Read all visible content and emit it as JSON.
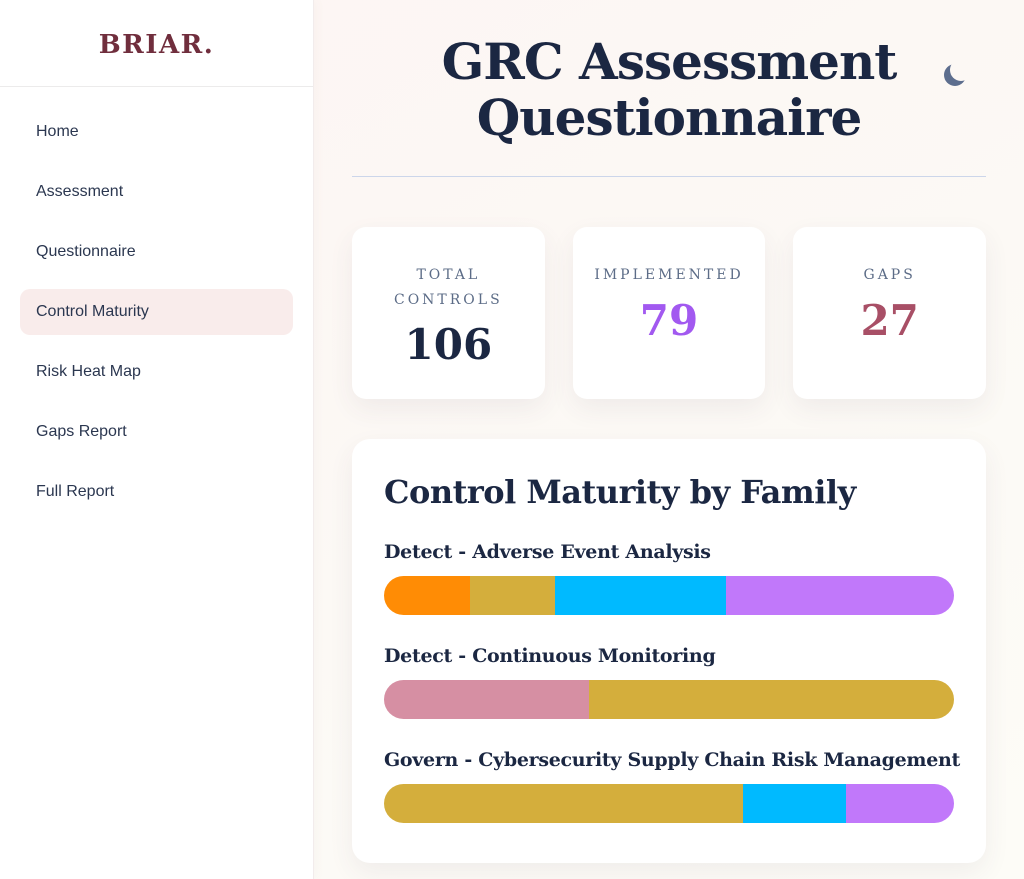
{
  "theme": {
    "brand_maroon": "#702e3d",
    "navy": "#1b2742",
    "slate_label": "#5c6c87",
    "active_nav_bg": "#f9eceb",
    "header_divider": "#ccd6ea",
    "moon_color": "#5d6e8e",
    "background": "#fdf8f5",
    "card_bg": "#ffffff"
  },
  "sidebar": {
    "logo": "BRIAR.",
    "items": [
      {
        "label": "Home",
        "active": false
      },
      {
        "label": "Assessment",
        "active": false
      },
      {
        "label": "Questionnaire",
        "active": false
      },
      {
        "label": "Control Maturity",
        "active": true
      },
      {
        "label": "Risk Heat Map",
        "active": false
      },
      {
        "label": "Gaps Report",
        "active": false
      },
      {
        "label": "Full Report",
        "active": false
      }
    ]
  },
  "header": {
    "title": "GRC Assessment Questionnaire",
    "theme_toggle_icon": "moon-icon"
  },
  "stats": [
    {
      "label": "TOTAL CONTROLS",
      "value": "106",
      "color": "#1b2742"
    },
    {
      "label": "IMPLEMENTED",
      "value": "79",
      "color": "#a259f0"
    },
    {
      "label": "GAPS",
      "value": "27",
      "color": "#a84f66"
    }
  ],
  "chart_data": {
    "type": "bar",
    "variant": "horizontal-stacked",
    "title": "Control Maturity by Family",
    "value_format": "percent-of-bar-width",
    "categories": [
      "Detect - Adverse Event Analysis",
      "Detect - Continuous Monitoring",
      "Govern - Cybersecurity Supply Chain Risk Management"
    ],
    "rows": [
      {
        "family": "Detect - Adverse Event Analysis",
        "segments": [
          {
            "color": "#ff8c05",
            "pct": 15
          },
          {
            "color": "#d4ae3c",
            "pct": 15
          },
          {
            "color": "#00baff",
            "pct": 30
          },
          {
            "color": "#c178fa",
            "pct": 40
          }
        ]
      },
      {
        "family": "Detect - Continuous Monitoring",
        "segments": [
          {
            "color": "#d68fa3",
            "pct": 36
          },
          {
            "color": "#d4ae3c",
            "pct": 64
          }
        ]
      },
      {
        "family": "Govern - Cybersecurity Supply Chain Risk Management",
        "segments": [
          {
            "color": "#d4ae3c",
            "pct": 63
          },
          {
            "color": "#00baff",
            "pct": 18
          },
          {
            "color": "#c178fa",
            "pct": 19
          }
        ]
      }
    ]
  }
}
